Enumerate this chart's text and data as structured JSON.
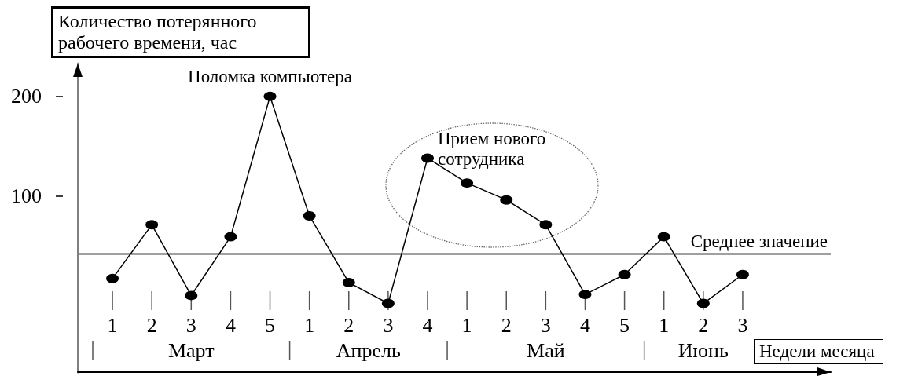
{
  "chart_data": {
    "type": "line",
    "xlabel": "Недели месяца",
    "ylabel": "Количество потерянного рабочего времени, час",
    "categories": [
      "1",
      "2",
      "3",
      "4",
      "5",
      "1",
      "2",
      "3",
      "4",
      "1",
      "2",
      "3",
      "4",
      "5",
      "1",
      "2",
      "3"
    ],
    "values": [
      17,
      71,
      0,
      59,
      200,
      80,
      13,
      -8,
      138,
      113,
      96,
      71,
      1,
      21,
      59,
      -8,
      21
    ],
    "color": "#000000",
    "ylim": [
      -77,
      233
    ],
    "yticks": [
      100,
      200
    ],
    "grid": false,
    "marker": "circle",
    "line_style": "solid",
    "ref_lines": [
      {
        "axis": "y",
        "value": 42,
        "label": "Среднее значение",
        "color": "#808080"
      }
    ],
    "annotations": [
      {
        "text": "Поломка компьютера",
        "x": "5",
        "y": 200
      },
      "Прием нового сотрудника",
      "Март",
      "Апрель",
      "Май",
      "Июнь"
    ]
  }
}
